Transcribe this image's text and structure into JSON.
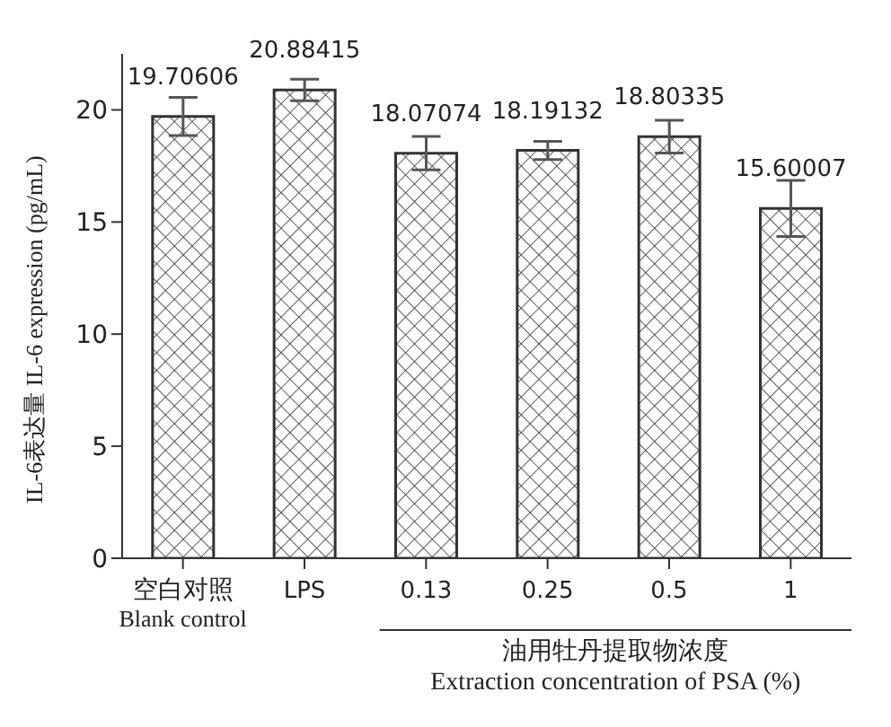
{
  "chart_data": {
    "type": "bar",
    "categories": [
      "空白对照\nBlank control",
      "LPS",
      "0.13",
      "0.25",
      "0.5",
      "1"
    ],
    "values": [
      19.70606,
      20.88415,
      18.07074,
      18.19132,
      18.80335,
      15.60007
    ],
    "errors": [
      0.85,
      0.48,
      0.75,
      0.41,
      0.73,
      1.25
    ],
    "color": "#333333",
    "data_labels": true,
    "ylim": [
      0,
      22.5
    ],
    "yticks": [
      0,
      5,
      10,
      15,
      20
    ],
    "ylabel": "IL-6表达量  IL-6 expression (pg/mL)",
    "xlabel": "油用牡丹提取物浓度\nExtraction concentration of PSA (%)",
    "grid": false,
    "legend": false
  }
}
